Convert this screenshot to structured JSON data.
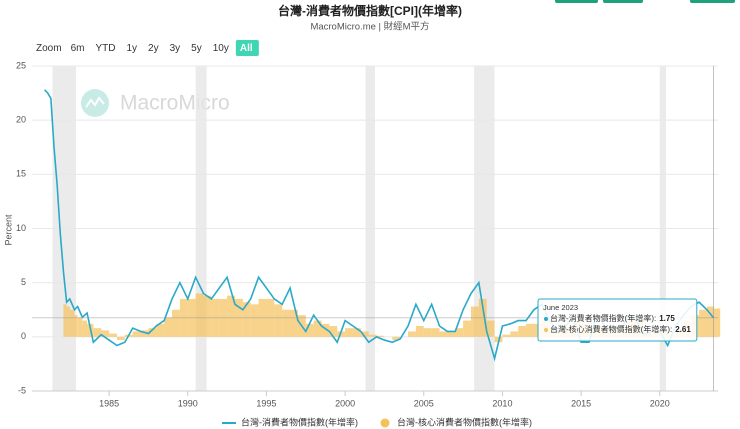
{
  "chart_data": {
    "type": "line",
    "title": "台灣-消費者物價指數[CPI](年增率)",
    "subtitle": "MacroMicro.me | 財經M平方",
    "watermark": "MacroMicro",
    "range_buttons": [
      "Zoom",
      "6m",
      "YTD",
      "1y",
      "2y",
      "3y",
      "5y",
      "10y",
      "All"
    ],
    "active_range": "All",
    "y_label": "Percent",
    "x": [
      1980.9,
      1981.1,
      1981.3,
      1981.5,
      1981.7,
      1981.9,
      1982.1,
      1982.3,
      1982.5,
      1982.8,
      1983.0,
      1983.3,
      1983.6,
      1984.0,
      1984.5,
      1985.0,
      1985.5,
      1986.0,
      1986.5,
      1987.0,
      1987.5,
      1988.0,
      1988.5,
      1989.0,
      1989.5,
      1990.0,
      1990.5,
      1991.0,
      1991.5,
      1992.0,
      1992.5,
      1993.0,
      1993.5,
      1994.0,
      1994.5,
      1995.0,
      1995.5,
      1996.0,
      1996.5,
      1997.0,
      1997.5,
      1998.0,
      1998.5,
      1999.0,
      1999.5,
      2000.0,
      2000.5,
      2001.0,
      2001.5,
      2002.0,
      2002.5,
      2003.0,
      2003.5,
      2004.0,
      2004.5,
      2005.0,
      2005.5,
      2006.0,
      2006.5,
      2007.0,
      2007.5,
      2008.0,
      2008.5,
      2009.0,
      2009.5,
      2010.0,
      2010.5,
      2011.0,
      2011.5,
      2012.0,
      2012.5,
      2013.0,
      2013.5,
      2014.0,
      2014.5,
      2015.0,
      2015.5,
      2016.0,
      2016.5,
      2017.0,
      2017.5,
      2018.0,
      2018.5,
      2019.0,
      2019.5,
      2020.0,
      2020.5,
      2021.0,
      2021.5,
      2022.0,
      2022.5,
      2023.0,
      2023.42
    ],
    "series": [
      {
        "name": "台灣-消費者物價指數(年增率)",
        "type": "line",
        "color": "#29a9c9",
        "values": [
          22.8,
          22.5,
          22.0,
          17.5,
          14.0,
          9.5,
          6.0,
          3.2,
          3.5,
          2.5,
          2.8,
          1.8,
          2.2,
          -0.5,
          0.2,
          -0.3,
          -0.8,
          -0.5,
          0.8,
          0.5,
          0.3,
          1.0,
          1.5,
          3.5,
          5.0,
          3.5,
          5.5,
          4.0,
          3.5,
          4.5,
          5.5,
          3.0,
          2.5,
          3.5,
          5.5,
          4.5,
          3.5,
          3.0,
          4.5,
          1.5,
          0.5,
          2.0,
          1.0,
          0.5,
          -0.5,
          1.5,
          1.0,
          0.5,
          -0.5,
          0.0,
          -0.3,
          -0.5,
          -0.2,
          1.0,
          3.0,
          1.5,
          3.0,
          1.0,
          0.5,
          0.5,
          2.5,
          4.0,
          5.0,
          0.5,
          -2.0,
          1.0,
          1.2,
          1.5,
          1.5,
          2.5,
          3.0,
          1.5,
          0.5,
          1.0,
          1.8,
          -0.5,
          -0.5,
          2.0,
          1.0,
          0.5,
          0.5,
          2.0,
          1.5,
          0.2,
          0.5,
          0.5,
          -0.8,
          1.0,
          2.0,
          2.8,
          3.2,
          2.5,
          1.75
        ]
      },
      {
        "name": "台灣-核心消費者物價指數(年增率)",
        "type": "column",
        "color": "#f5c15a",
        "values": [
          null,
          null,
          null,
          null,
          null,
          null,
          3.0,
          2.8,
          2.5,
          2.0,
          1.8,
          1.5,
          1.2,
          0.8,
          0.6,
          0.3,
          -0.3,
          0.2,
          0.5,
          0.6,
          0.8,
          1.2,
          1.8,
          2.5,
          3.5,
          3.5,
          4.0,
          3.8,
          3.5,
          3.5,
          3.8,
          3.5,
          3.2,
          3.0,
          3.5,
          3.5,
          3.0,
          2.5,
          2.5,
          2.0,
          1.2,
          1.5,
          1.2,
          1.0,
          0.5,
          0.8,
          0.8,
          0.5,
          0.2,
          0.1,
          0.0,
          -0.3,
          0.0,
          0.5,
          1.0,
          0.8,
          0.8,
          0.5,
          0.5,
          0.8,
          1.5,
          2.8,
          3.5,
          1.5,
          -0.5,
          0.2,
          0.5,
          1.0,
          1.2,
          1.2,
          1.5,
          0.8,
          0.8,
          1.0,
          1.5,
          1.2,
          0.8,
          1.0,
          1.0,
          1.0,
          1.0,
          1.5,
          1.5,
          0.5,
          0.5,
          0.5,
          0.2,
          0.5,
          1.5,
          2.0,
          2.5,
          2.8,
          2.61
        ]
      }
    ],
    "shaded_periods": [
      [
        1981.4,
        1982.9
      ],
      [
        1990.5,
        1991.2
      ],
      [
        2001.3,
        2001.9
      ],
      [
        2008.2,
        2009.5
      ],
      [
        2020.0,
        2020.4
      ]
    ],
    "xlim": [
      1980.1,
      2023.7
    ],
    "xticks": [
      1985,
      1990,
      1995,
      2000,
      2005,
      2010,
      2015,
      2020
    ],
    "ylim": [
      -5,
      25
    ],
    "yticks": [
      -5,
      0,
      5,
      10,
      15,
      20,
      25
    ],
    "grid": true,
    "tooltip": {
      "title": "June 2023",
      "items": [
        {
          "label": "台灣-消費者物價指數(年增率):",
          "value": 1.75
        },
        {
          "label": "台灣-核心消費者物價指數(年增率):",
          "value": 2.61
        }
      ]
    }
  }
}
